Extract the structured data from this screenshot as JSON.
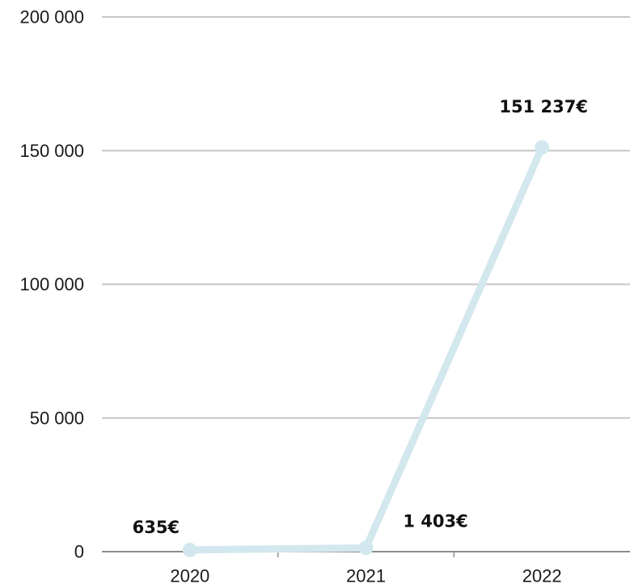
{
  "chart_data": {
    "type": "line",
    "title": "",
    "xlabel": "",
    "ylabel": "",
    "categories": [
      "2020",
      "2021",
      "2022"
    ],
    "series": [
      {
        "values": [
          635,
          1403,
          151237
        ],
        "data_labels": [
          "635€",
          "1 403€",
          "151 237€"
        ],
        "color": "#d3e8ee"
      }
    ],
    "ylim": [
      0,
      200000
    ],
    "y_ticks": [
      0,
      50000,
      100000,
      150000,
      200000
    ],
    "y_tick_labels": [
      "0",
      "50 000",
      "100 000",
      "150 000",
      "200 000"
    ],
    "grid": true,
    "legend": "none"
  }
}
